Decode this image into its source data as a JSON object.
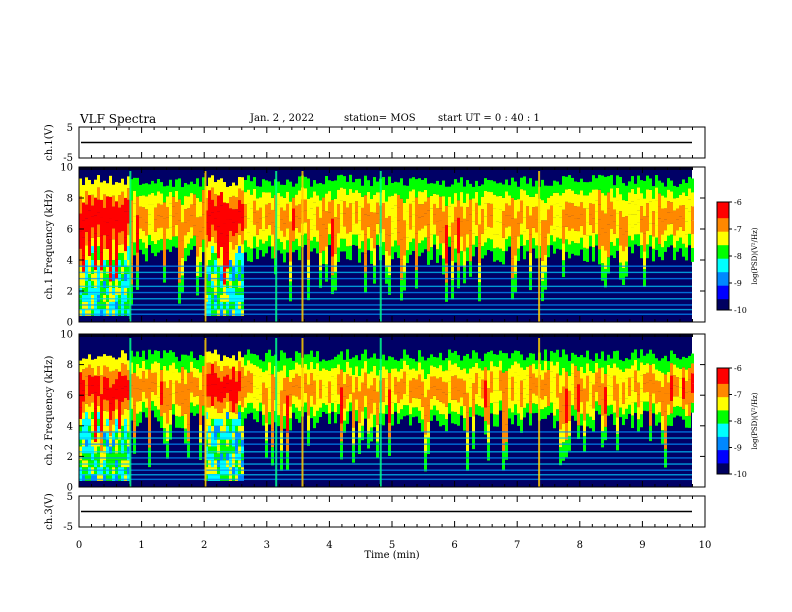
{
  "header": {
    "title": "VLF Spectra",
    "date": "Jan. 2 , 2022",
    "station": "station= MOS",
    "start": "start UT = 0 : 40 : 1"
  },
  "colorbar": {
    "label": "log(PSD)(V²/Hz)",
    "ticks": [
      "-6",
      "-7",
      "-8",
      "-9",
      "-10"
    ],
    "range": [
      -10,
      -6
    ],
    "colors": [
      "#000060",
      "#0000ff",
      "#0088ff",
      "#00ffff",
      "#00ff00",
      "#ffff00",
      "#ff8800",
      "#ff0000",
      "#ffffff"
    ]
  },
  "chart_data": [
    {
      "type": "line",
      "name": "waveform-ch1",
      "ylabel": "ch.1(V)",
      "ylim": [
        -5,
        5
      ],
      "yticks": [
        "5",
        "-5"
      ],
      "level": 0
    },
    {
      "type": "heatmap",
      "name": "spectrogram-ch1",
      "ylabel": "ch.1 Frequency (kHz)",
      "ylim": [
        0,
        10
      ],
      "yticks": [
        "0",
        "2",
        "4",
        "6",
        "8",
        "10"
      ],
      "xlim": [
        0,
        10
      ],
      "emission_band_khz": [
        5,
        9.5
      ],
      "strong_segments_min": [
        [
          0,
          0.8
        ],
        [
          2,
          2.6
        ]
      ],
      "vertical_lines_min": [
        0.82,
        2.02,
        3.15,
        3.57,
        4.82,
        7.35
      ]
    },
    {
      "type": "heatmap",
      "name": "spectrogram-ch2",
      "ylabel": "ch.2 Frequency (kHz)",
      "ylim": [
        0,
        10
      ],
      "yticks": [
        "0",
        "2",
        "4",
        "6",
        "8",
        "10"
      ],
      "xlim": [
        0,
        10
      ],
      "emission_band_khz": [
        5,
        9
      ],
      "strong_segments_min": [
        [
          0,
          0.8
        ],
        [
          2,
          2.6
        ]
      ],
      "vertical_lines_min": [
        0.82,
        2.02,
        3.15,
        3.57,
        4.82,
        7.35
      ]
    },
    {
      "type": "line",
      "name": "waveform-ch3",
      "ylabel": "ch.3(V)",
      "ylim": [
        -5,
        5
      ],
      "yticks": [
        "5",
        "-5"
      ],
      "level": 0
    }
  ],
  "xaxis": {
    "label": "Time (min)",
    "xlim": [
      0,
      10
    ],
    "ticks": [
      "0",
      "1",
      "2",
      "3",
      "4",
      "5",
      "6",
      "7",
      "8",
      "9",
      "10"
    ]
  }
}
